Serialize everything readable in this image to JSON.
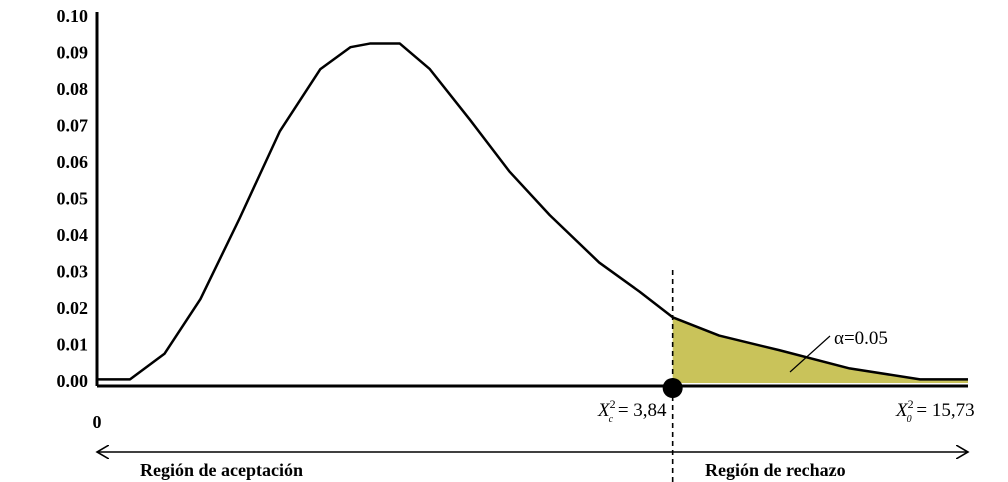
{
  "chart_data": {
    "type": "line",
    "x": [
      0,
      0.22,
      0.45,
      0.69,
      0.95,
      1.22,
      1.49,
      1.69,
      1.82,
      2.02,
      2.22,
      2.49,
      2.75,
      3.02,
      3.35,
      3.62,
      3.84,
      4.15,
      4.55,
      5.02,
      5.49,
      5.81
    ],
    "values": [
      0.001,
      0.001,
      0.008,
      0.023,
      0.045,
      0.069,
      0.086,
      0.092,
      0.093,
      0.093,
      0.086,
      0.072,
      0.058,
      0.046,
      0.033,
      0.025,
      0.018,
      0.013,
      0.009,
      0.004,
      0.001,
      0.001
    ],
    "color": "#000000",
    "shade_color": "#c9c35a",
    "shade_from": 3.84,
    "xlim": [
      0,
      5.81
    ],
    "ylim": [
      0,
      0.1
    ],
    "yticks": [
      {
        "value": 0,
        "label": "0.00"
      },
      0.01,
      0.02,
      0.03,
      0.04,
      0.05,
      0.06,
      0.07,
      0.08,
      0.09,
      {
        "value": 0.1,
        "label": "0.10"
      }
    ],
    "origin_label": "0",
    "critical_label": {
      "symbol": "X",
      "sup": "2",
      "sub": "c",
      "text": " = 3,84"
    },
    "observed_label": {
      "symbol": "X",
      "sup": "2",
      "sub": "0",
      "text": " = 15,73"
    },
    "alpha_label": "α=0.05",
    "acceptance_label": "Región de aceptación",
    "rejection_label": "Región de rechazo"
  }
}
